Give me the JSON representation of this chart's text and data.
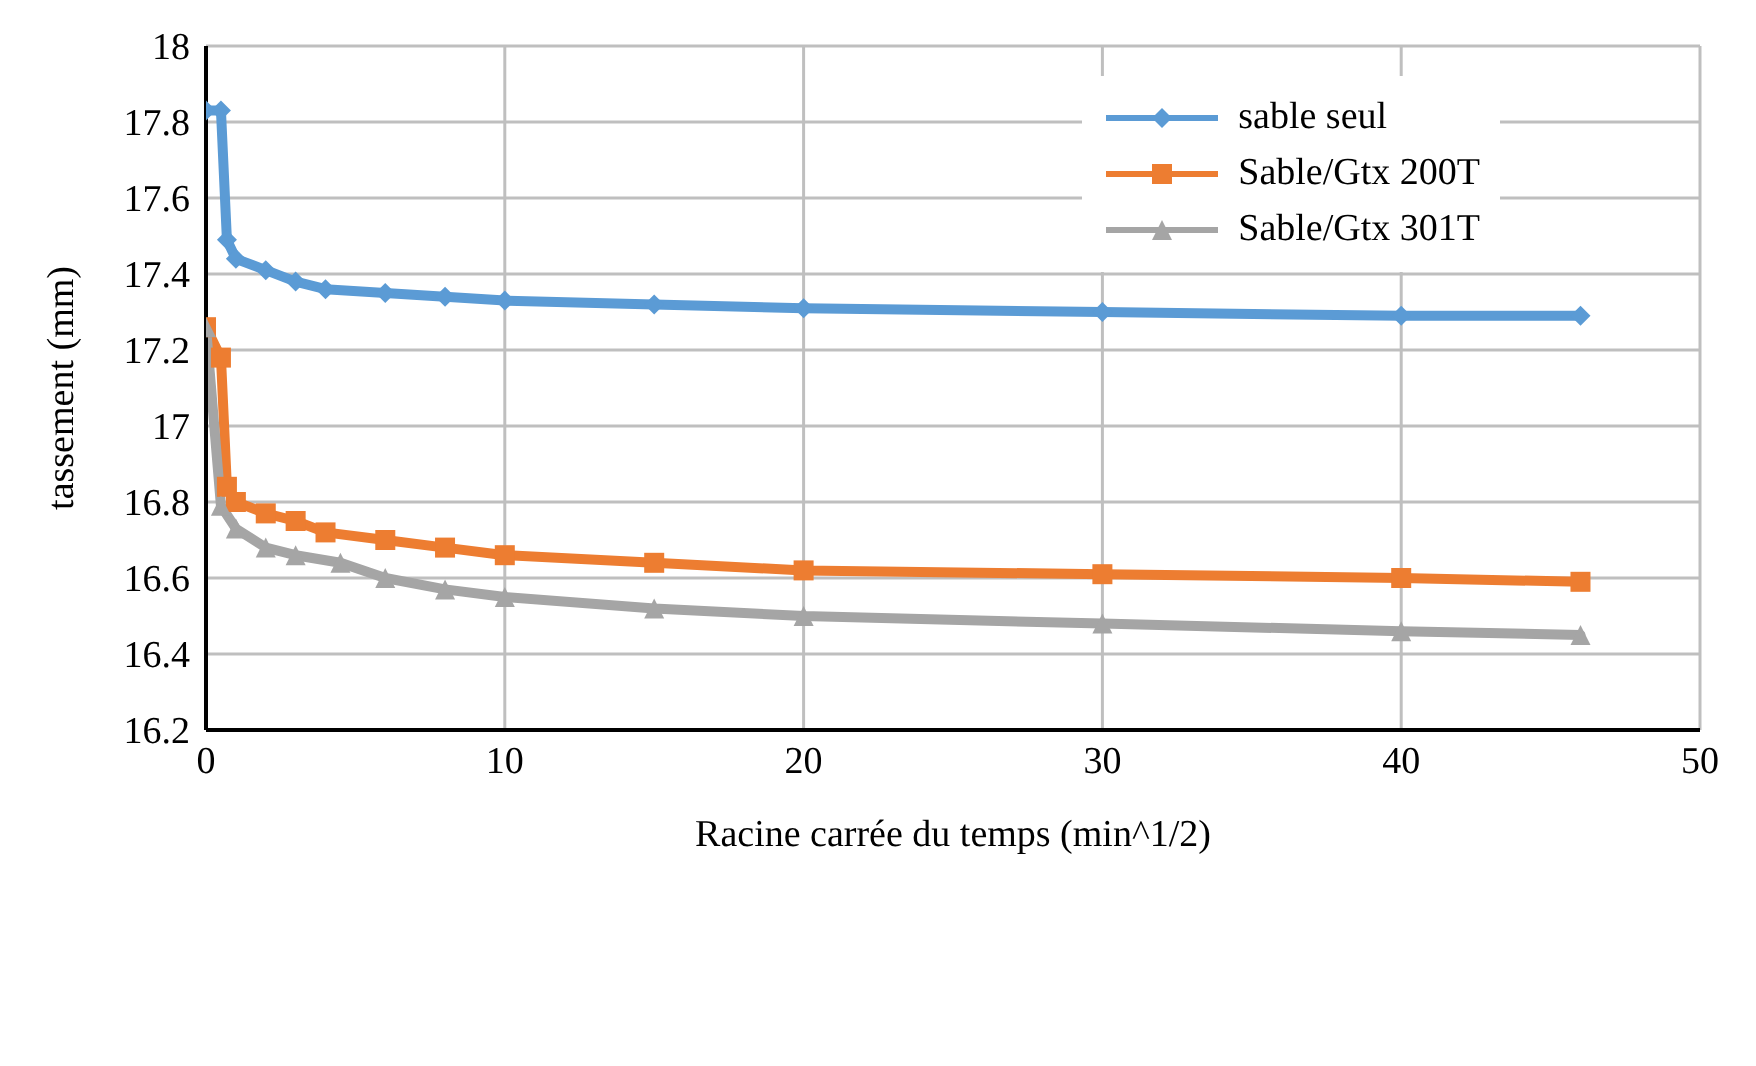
{
  "chart_data": {
    "type": "line",
    "xlabel": "Racine carrée du temps (min^1/2)",
    "ylabel": "tassement (mm)",
    "xlim": [
      0,
      50
    ],
    "xticks": [
      0,
      10,
      20,
      30,
      40,
      50
    ],
    "ylim": [
      16.2,
      18
    ],
    "yticks": [
      16.2,
      16.4,
      16.6,
      16.8,
      17,
      17.2,
      17.4,
      17.6,
      17.8,
      18
    ],
    "grid": true,
    "legend": "top right",
    "line_style": "solid",
    "series": [
      {
        "name": "sable seul",
        "color": "#5b9bd5",
        "marker": "diamond",
        "x": [
          0,
          0.5,
          0.7,
          1,
          2,
          3,
          4,
          6,
          8,
          10,
          15,
          20,
          30,
          40,
          46
        ],
        "values": [
          17.83,
          17.83,
          17.49,
          17.44,
          17.41,
          17.38,
          17.36,
          17.35,
          17.34,
          17.33,
          17.32,
          17.31,
          17.3,
          17.29,
          17.29
        ]
      },
      {
        "name": "Sable/Gtx 200T",
        "color": "#ed7d31",
        "marker": "square",
        "x": [
          0,
          0.5,
          0.7,
          1,
          2,
          3,
          4,
          6,
          8,
          10,
          15,
          20,
          30,
          40,
          46
        ],
        "values": [
          17.26,
          17.18,
          16.84,
          16.8,
          16.77,
          16.75,
          16.72,
          16.7,
          16.68,
          16.66,
          16.64,
          16.62,
          16.61,
          16.6,
          16.59
        ]
      },
      {
        "name": "Sable/Gtx 301T",
        "color": "#a5a5a5",
        "marker": "triangle",
        "x": [
          0,
          0.5,
          1,
          2,
          3,
          4.5,
          6,
          8,
          10,
          15,
          20,
          30,
          40,
          46
        ],
        "values": [
          17.26,
          16.79,
          16.73,
          16.68,
          16.66,
          16.64,
          16.6,
          16.57,
          16.55,
          16.52,
          16.5,
          16.48,
          16.46,
          16.45
        ]
      }
    ]
  }
}
